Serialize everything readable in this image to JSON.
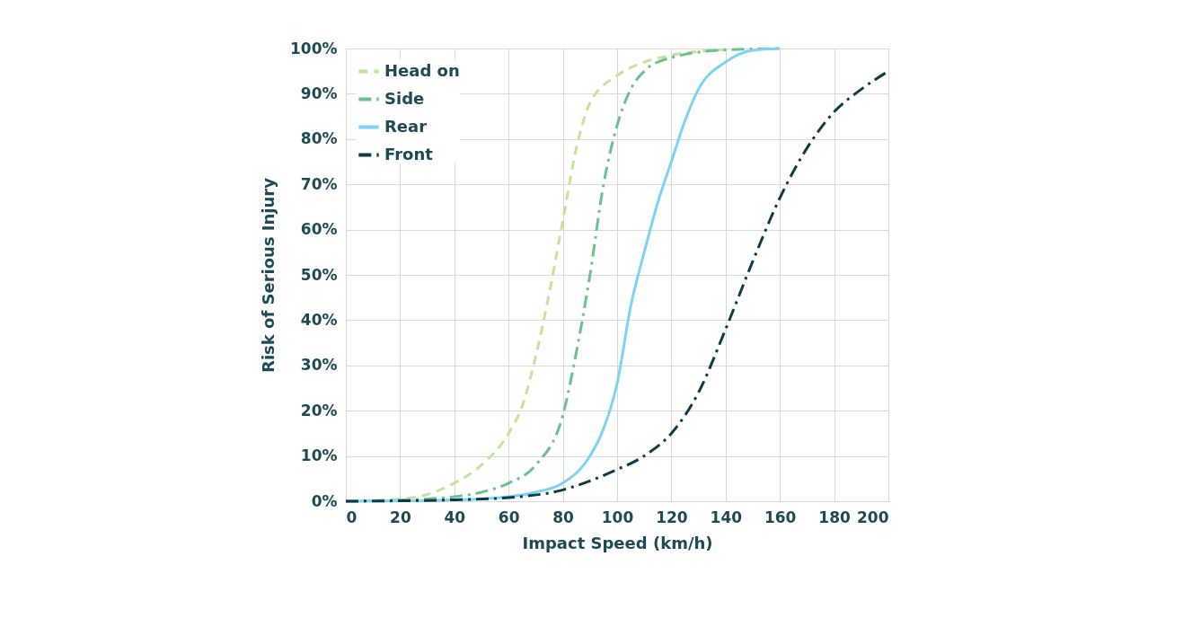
{
  "chart_data": {
    "type": "line",
    "xlabel": "Impact Speed (km/h)",
    "ylabel": "Risk of Serious Injury",
    "xlim": [
      0,
      200
    ],
    "xticks": [
      0,
      20,
      40,
      60,
      80,
      100,
      120,
      140,
      160,
      180,
      200
    ],
    "ylim": [
      0,
      100
    ],
    "yticks": [
      {
        "value": 0,
        "label": "0%"
      },
      {
        "value": 10,
        "label": "10%"
      },
      {
        "value": 20,
        "label": "20%"
      },
      {
        "value": 30,
        "label": "30%"
      },
      {
        "value": 40,
        "label": "40%"
      },
      {
        "value": 50,
        "label": "50%"
      },
      {
        "value": 60,
        "label": "60%"
      },
      {
        "value": 70,
        "label": "70%"
      },
      {
        "value": 80,
        "label": "80%"
      },
      {
        "value": 90,
        "label": "90%"
      },
      {
        "value": 100,
        "label": "100%"
      }
    ],
    "grid": true,
    "legend": "top left",
    "marker": "none",
    "series": [
      {
        "name": "Head on",
        "color": "#c5e39a",
        "line_style": "dashed",
        "x": [
          0,
          20,
          30,
          40,
          50,
          60,
          65,
          70,
          75,
          80,
          85,
          90,
          100,
          110,
          120,
          140
        ],
        "values": [
          0,
          0.5,
          1.5,
          4,
          8,
          15,
          21,
          32,
          46,
          62,
          78,
          88,
          94,
          97,
          98.5,
          99.8
        ]
      },
      {
        "name": "Side",
        "color": "#6cc28f",
        "line_style": "dashdot",
        "x": [
          0,
          30,
          40,
          50,
          60,
          70,
          80,
          85,
          90,
          95,
          100,
          105,
          110,
          120,
          140,
          160
        ],
        "values": [
          0,
          0.5,
          1,
          2,
          4,
          8,
          19,
          33,
          50,
          70,
          83,
          91,
          95,
          98,
          99.7,
          100
        ]
      },
      {
        "name": "Rear",
        "color": "#7dd3f5",
        "line_style": "solid",
        "x": [
          0,
          40,
          60,
          70,
          80,
          90,
          95,
          100,
          105,
          110,
          115,
          120,
          125,
          130,
          140,
          150,
          160
        ],
        "values": [
          0,
          0.3,
          1,
          2,
          4,
          10,
          16,
          26,
          43,
          55,
          66,
          75,
          84,
          91,
          97,
          99.6,
          100
        ]
      },
      {
        "name": "Front",
        "color": "#0d3b47",
        "line_style": "dashdot",
        "x": [
          0,
          40,
          60,
          80,
          90,
          100,
          110,
          120,
          130,
          140,
          150,
          160,
          170,
          180,
          190,
          200
        ],
        "values": [
          0,
          0.3,
          0.8,
          2.5,
          4.5,
          7,
          10,
          15,
          24,
          38,
          53,
          67,
          78,
          86,
          91,
          95
        ]
      }
    ]
  }
}
